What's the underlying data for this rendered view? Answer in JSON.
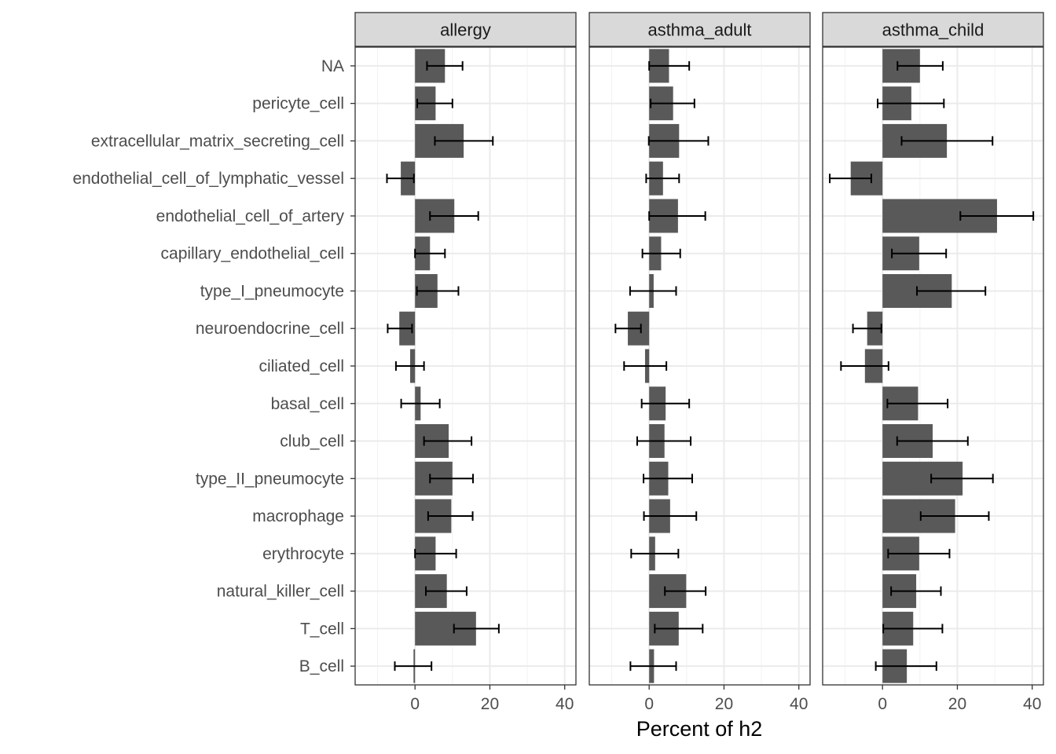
{
  "chart_data": {
    "type": "bar",
    "orientation": "horizontal",
    "facets": [
      "allergy",
      "asthma_adult",
      "asthma_child"
    ],
    "categories": [
      "NA",
      "pericyte_cell",
      "extracellular_matrix_secreting_cell",
      "endothelial_cell_of_lymphatic_vessel",
      "endothelial_cell_of_artery",
      "capillary_endothelial_cell",
      "type_I_pneumocyte",
      "neuroendocrine_cell",
      "ciliated_cell",
      "basal_cell",
      "club_cell",
      "type_II_pneumocyte",
      "macrophage",
      "erythrocyte",
      "natural_killer_cell",
      "T_cell",
      "B_cell"
    ],
    "series": [
      {
        "name": "allergy",
        "values": [
          8.0,
          5.5,
          13.0,
          -3.8,
          10.5,
          4.0,
          6.0,
          -4.2,
          -1.3,
          1.5,
          9.0,
          10.0,
          9.7,
          5.5,
          8.5,
          16.3,
          -0.4
        ],
        "err_low": [
          3.2,
          0.6,
          5.3,
          -7.5,
          4.0,
          0.0,
          0.5,
          -7.3,
          -5.1,
          -3.7,
          2.4,
          4.0,
          3.5,
          0.0,
          2.9,
          10.4,
          -5.4
        ],
        "err_high": [
          12.7,
          10.0,
          20.8,
          -0.3,
          16.9,
          8.0,
          11.6,
          -0.8,
          2.4,
          6.6,
          15.1,
          15.5,
          15.4,
          11.0,
          13.8,
          22.4,
          4.4
        ]
      },
      {
        "name": "asthma_adult",
        "values": [
          5.3,
          6.4,
          8.0,
          3.7,
          7.7,
          3.2,
          1.2,
          -5.7,
          -1.1,
          4.4,
          4.1,
          5.1,
          5.6,
          1.6,
          9.9,
          7.9,
          1.3
        ],
        "err_low": [
          0.0,
          0.4,
          -0.1,
          -0.8,
          0.0,
          -1.8,
          -5.1,
          -9.0,
          -6.7,
          -2.0,
          -3.2,
          -1.5,
          -1.4,
          -4.8,
          4.2,
          1.5,
          -5.0
        ],
        "err_high": [
          10.7,
          12.1,
          15.8,
          8.0,
          15.0,
          8.3,
          7.2,
          -2.2,
          4.6,
          10.7,
          11.1,
          11.5,
          12.6,
          7.8,
          15.1,
          14.3,
          7.2
        ]
      },
      {
        "name": "asthma_child",
        "values": [
          10.0,
          7.7,
          17.2,
          -8.5,
          30.6,
          9.8,
          18.5,
          -4.1,
          -4.7,
          9.5,
          13.4,
          21.4,
          19.4,
          9.8,
          9.0,
          8.2,
          6.5
        ],
        "err_low": [
          4.0,
          -1.3,
          5.1,
          -14.1,
          20.8,
          2.5,
          9.2,
          -7.9,
          -11.1,
          1.3,
          3.9,
          13.0,
          10.2,
          1.5,
          2.3,
          0.2,
          -1.8
        ],
        "err_high": [
          16.1,
          16.4,
          29.4,
          -3.0,
          40.3,
          17.0,
          27.5,
          -0.3,
          1.6,
          17.4,
          22.8,
          29.5,
          28.4,
          17.9,
          15.6,
          16.0,
          14.4
        ]
      }
    ],
    "xlabel": "Percent of h2",
    "ylabel": "",
    "xlim": [
      -16,
      43
    ],
    "x_ticks": [
      0,
      20,
      40
    ],
    "grid": true,
    "legend": "none"
  }
}
